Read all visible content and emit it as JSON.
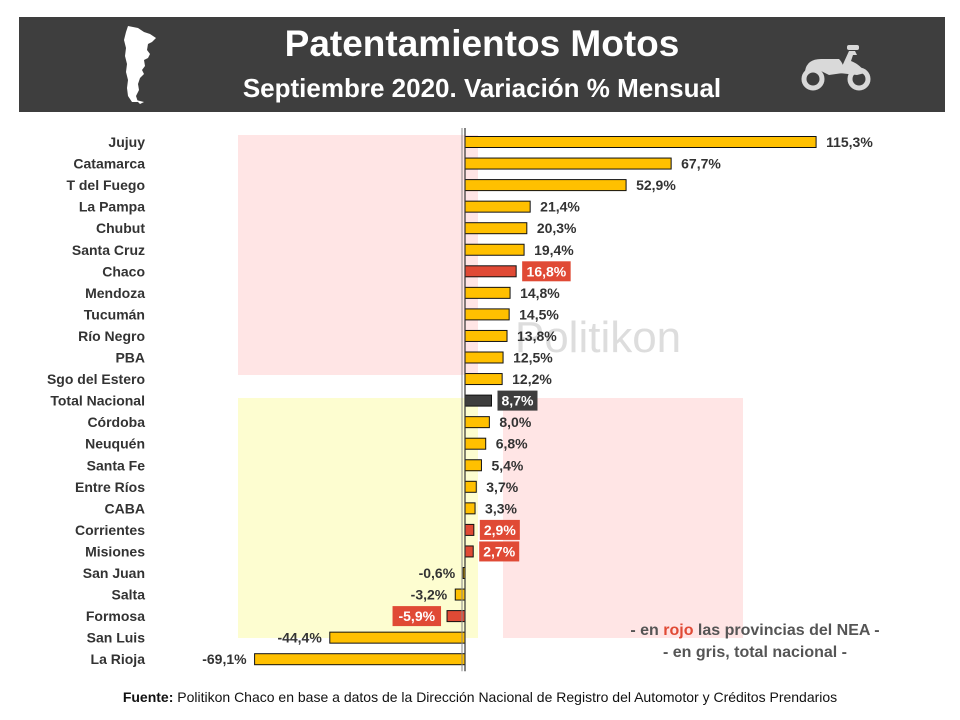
{
  "header": {
    "title": "Patentamientos Motos",
    "subtitle": "Septiembre 2020. Variación % Mensual"
  },
  "watermark": "Politikon",
  "colors": {
    "default_bar": "#ffc000",
    "nea_bar": "#e04a35",
    "total_bar": "#3e3e3e",
    "header_bg": "#3e3e3e"
  },
  "icons": {
    "left": "argentina-map-icon",
    "right": "scooter-icon"
  },
  "chart_data": {
    "type": "bar",
    "orientation": "horizontal",
    "title": "Patentamientos Motos",
    "subtitle": "Septiembre 2020. Variación % Mensual",
    "xlabel": "",
    "ylabel": "",
    "xlim": [
      -69.1,
      115.3
    ],
    "grid": false,
    "categories": [
      "Jujuy",
      "Catamarca",
      "T del Fuego",
      "La Pampa",
      "Chubut",
      "Santa Cruz",
      "Chaco",
      "Mendoza",
      "Tucumán",
      "Río Negro",
      "PBA",
      "Sgo del Estero",
      "Total Nacional",
      "Córdoba",
      "Neuquén",
      "Santa Fe",
      "Entre Ríos",
      "CABA",
      "Corrientes",
      "Misiones",
      "San Juan",
      "Salta",
      "Formosa",
      "San Luis",
      "La Rioja"
    ],
    "values": [
      115.3,
      67.7,
      52.9,
      21.4,
      20.3,
      19.4,
      16.8,
      14.8,
      14.5,
      13.8,
      12.5,
      12.2,
      8.7,
      8.0,
      6.8,
      5.4,
      3.7,
      3.3,
      2.9,
      2.7,
      -0.6,
      -3.2,
      -5.9,
      -44.4,
      -69.1
    ],
    "labels": [
      "115,3%",
      "67,7%",
      "52,9%",
      "21,4%",
      "20,3%",
      "19,4%",
      "16,8%",
      "14,8%",
      "14,5%",
      "13,8%",
      "12,5%",
      "12,2%",
      "8,7%",
      "8,0%",
      "6,8%",
      "5,4%",
      "3,7%",
      "3,3%",
      "2,9%",
      "2,7%",
      "-0,6%",
      "-3,2%",
      "-5,9%",
      "-44,4%",
      "-69,1%"
    ],
    "highlight": [
      "default",
      "default",
      "default",
      "default",
      "default",
      "default",
      "nea",
      "default",
      "default",
      "default",
      "default",
      "default",
      "total",
      "default",
      "default",
      "default",
      "default",
      "default",
      "nea",
      "nea",
      "default",
      "default",
      "nea",
      "default",
      "default"
    ]
  },
  "notes": {
    "line1_prefix": "- en ",
    "line1_red": "rojo",
    "line1_suffix": " las provincias del NEA -",
    "line2": "- en gris, total nacional -"
  },
  "source": {
    "label": "Fuente:",
    "text": " Politikon Chaco en base a datos de la Dirección Nacional de Registro del Automotor y Créditos Prendarios"
  }
}
